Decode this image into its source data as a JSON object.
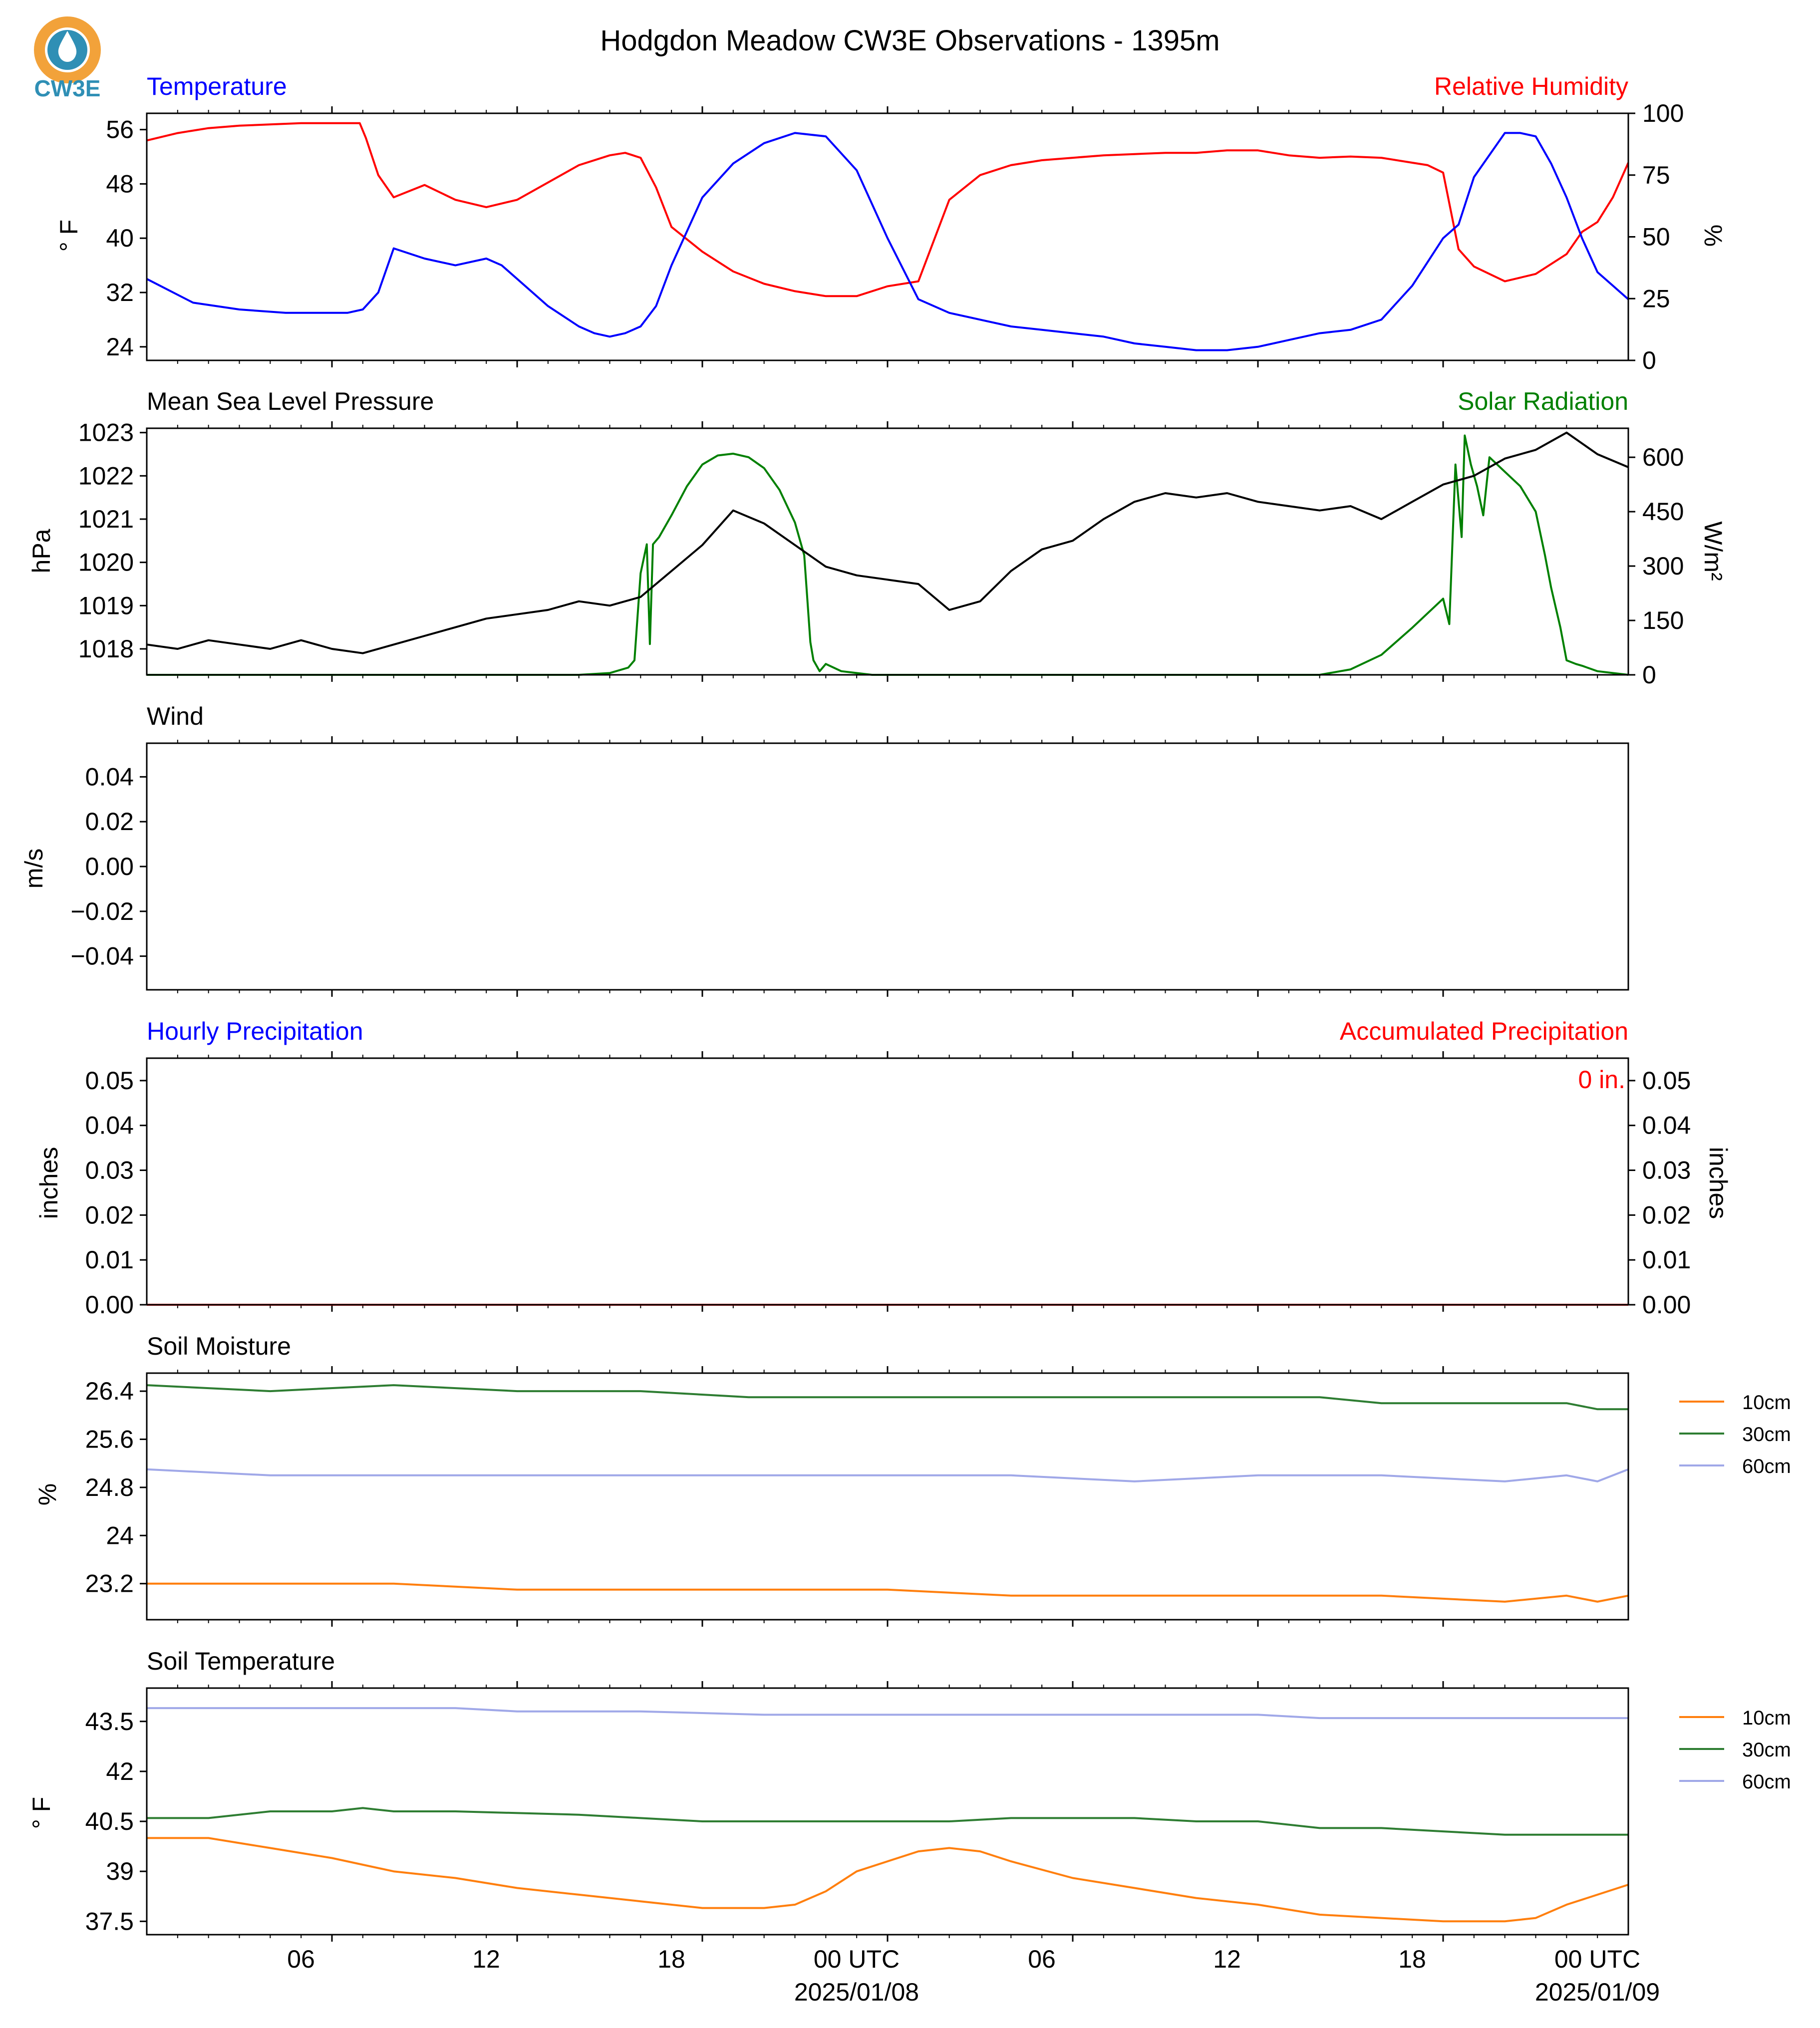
{
  "title": "Hodgdon Meadow CW3E Observations - 1395m",
  "logo": {
    "text": "CW3E",
    "ring_color": "#f2a23a",
    "drop_color": "#2f8fb5",
    "text_color": "#2f8fb5"
  },
  "colors": {
    "temp": "#0000ff",
    "rh": "#ff0000",
    "pressure": "#000000",
    "solar": "#008000",
    "soil10": "#ff7f0e",
    "soil30": "#2e7d32",
    "soil60": "#a0a8e8"
  },
  "x_axis": {
    "tick_labels": [
      "06",
      "12",
      "18",
      "00 UTC",
      "06",
      "12",
      "18",
      "00 UTC"
    ],
    "date_labels": [
      "2025/01/08",
      "2025/01/09"
    ]
  },
  "panels": {
    "temp_rh": {
      "left_title": "Temperature",
      "right_title": "Relative Humidity",
      "left_unit": "° F",
      "right_unit": "%"
    },
    "pressure_solar": {
      "left_title": "Mean Sea Level Pressure",
      "right_title": "Solar Radiation",
      "left_unit": "hPa",
      "right_unit": "W/m²"
    },
    "wind": {
      "left_title": "Wind",
      "left_unit": "m/s"
    },
    "precip": {
      "left_title": "Hourly Precipitation",
      "right_title": "Accumulated Precipitation",
      "left_unit": "inches",
      "right_unit": "inches",
      "annotation": "0 in."
    },
    "soil_moisture": {
      "left_title": "Soil Moisture",
      "left_unit": "%",
      "legend": [
        "10cm",
        "30cm",
        "60cm"
      ]
    },
    "soil_temp": {
      "left_title": "Soil Temperature",
      "left_unit": "° F",
      "legend": [
        "10cm",
        "30cm",
        "60cm"
      ]
    }
  },
  "chart_data": [
    {
      "type": "line",
      "title": "Temperature",
      "x_unit": "hours since 2025/01/07 00 UTC",
      "xlim": [
        0,
        48
      ],
      "ylabel": "° F",
      "ylim": [
        22,
        58.4
      ],
      "yticks": [
        24,
        32,
        40,
        48,
        56
      ],
      "series": [
        {
          "name": "Temperature",
          "x": [
            0,
            1.5,
            3,
            4.5,
            5.5,
            6.5,
            7,
            7.5,
            8,
            9,
            10,
            11,
            11.5,
            12,
            13,
            14,
            14.5,
            15,
            15.5,
            16,
            16.5,
            17,
            18,
            19,
            20,
            21,
            22,
            23,
            24,
            25,
            26,
            27,
            28,
            29,
            30,
            31,
            32,
            33,
            34,
            35,
            36,
            37,
            38,
            39,
            40,
            41,
            42,
            42.5,
            43,
            44,
            44.5,
            45,
            45.5,
            46,
            46.5,
            46.8,
            47,
            47.5,
            48
          ],
          "y": [
            34,
            30.5,
            29.5,
            29,
            29,
            29,
            29.5,
            32,
            38.5,
            37,
            36,
            37,
            36,
            34,
            30,
            27,
            26,
            25.5,
            26,
            27,
            30,
            36,
            46,
            51,
            54,
            55.5,
            55,
            50,
            40,
            31,
            29,
            28,
            27,
            26.5,
            26,
            25.5,
            24.5,
            24,
            23.5,
            23.5,
            24,
            25,
            26,
            26.5,
            28,
            33,
            40,
            42,
            49,
            55.5,
            55.5,
            55,
            51,
            46,
            40,
            37,
            35,
            33,
            31
          ]
        }
      ]
    },
    {
      "type": "line",
      "title": "Relative Humidity",
      "x_unit": "hours since 2025/01/07 00 UTC",
      "xlim": [
        0,
        48
      ],
      "ylabel": "%",
      "ylim": [
        0,
        100
      ],
      "yticks": [
        0,
        25,
        50,
        75,
        100
      ],
      "series": [
        {
          "name": "Relative Humidity",
          "x": [
            0,
            1,
            2,
            3,
            4,
            5,
            6,
            6.9,
            7.1,
            7.5,
            8,
            9,
            10,
            11,
            12,
            13,
            14,
            15,
            15.5,
            16,
            16.5,
            17,
            18,
            19,
            20,
            21,
            22,
            23,
            24,
            25,
            26,
            27,
            28,
            29,
            30,
            31,
            32,
            33,
            34,
            35,
            36,
            37,
            38,
            39,
            40,
            41,
            41.5,
            42,
            42.5,
            43,
            43.5,
            44,
            45,
            46,
            46.5,
            47,
            47.5,
            48
          ],
          "y": [
            89,
            92,
            94,
            95,
            95.5,
            96,
            96,
            96,
            90,
            75,
            66,
            71,
            65,
            62,
            65,
            72,
            79,
            83,
            84,
            82,
            70,
            54,
            44,
            36,
            31,
            28,
            26,
            26,
            30,
            32,
            65,
            75,
            79,
            81,
            82,
            83,
            83.5,
            84,
            84,
            85,
            85,
            83,
            82,
            82.5,
            82,
            80,
            79,
            76,
            45,
            38,
            35,
            32,
            35,
            43,
            52,
            56,
            66,
            80
          ]
        }
      ]
    },
    {
      "type": "line",
      "title": "Mean Sea Level Pressure",
      "x_unit": "hours since 2025/01/07 00 UTC",
      "xlim": [
        0,
        48
      ],
      "ylabel": "hPa",
      "ylim": [
        1017.4,
        1023.1
      ],
      "yticks": [
        1018,
        1019,
        1020,
        1021,
        1022,
        1023
      ],
      "series": [
        {
          "name": "Mean Sea Level Pressure",
          "x": [
            0,
            1,
            2,
            3,
            4,
            5,
            6,
            7,
            8,
            9,
            10,
            11,
            12,
            13,
            14,
            15,
            16,
            17,
            18,
            19,
            20,
            21,
            22,
            23,
            24,
            25,
            26,
            27,
            28,
            29,
            30,
            31,
            32,
            33,
            34,
            35,
            36,
            37,
            38,
            39,
            40,
            41,
            42,
            43,
            44,
            45,
            46,
            47,
            48
          ],
          "y": [
            1018.1,
            1018.0,
            1018.2,
            1018.1,
            1018.0,
            1018.2,
            1018.0,
            1017.9,
            1018.1,
            1018.3,
            1018.5,
            1018.7,
            1018.8,
            1018.9,
            1019.1,
            1019.0,
            1019.2,
            1019.8,
            1020.4,
            1021.2,
            1020.9,
            1020.4,
            1019.9,
            1019.7,
            1019.6,
            1019.5,
            1018.9,
            1019.1,
            1019.8,
            1020.3,
            1020.5,
            1021.0,
            1021.4,
            1021.6,
            1021.5,
            1021.6,
            1021.4,
            1021.3,
            1021.2,
            1021.3,
            1021.0,
            1021.4,
            1021.8,
            1022.0,
            1022.4,
            1022.6,
            1023.0,
            1022.5,
            1022.2
          ]
        }
      ]
    },
    {
      "type": "line",
      "title": "Solar Radiation",
      "x_unit": "hours since 2025/01/07 00 UTC",
      "xlim": [
        0,
        48
      ],
      "ylabel": "W/m²",
      "ylim": [
        0,
        680
      ],
      "yticks": [
        0,
        150,
        300,
        450,
        600
      ],
      "series": [
        {
          "name": "Solar Radiation",
          "x": [
            0,
            14,
            15,
            15.6,
            15.8,
            16.0,
            16.1,
            16.2,
            16.3,
            16.4,
            16.6,
            17,
            17.5,
            18,
            18.5,
            19,
            19.5,
            20,
            20.5,
            21,
            21.3,
            21.5,
            21.6,
            21.8,
            22,
            22.5,
            23,
            23.5,
            24,
            25,
            30,
            35,
            38,
            39,
            40,
            41,
            42,
            42.2,
            42.4,
            42.6,
            42.7,
            42.9,
            43.1,
            43.3,
            43.5,
            44,
            44.5,
            45,
            45.3,
            45.5,
            45.8,
            46,
            46.3,
            46.5,
            47,
            48
          ],
          "y": [
            0,
            0,
            5,
            20,
            40,
            280,
            320,
            360,
            85,
            360,
            380,
            440,
            520,
            580,
            605,
            610,
            600,
            570,
            510,
            420,
            330,
            90,
            40,
            10,
            30,
            10,
            5,
            0,
            0,
            0,
            0,
            0,
            0,
            15,
            55,
            130,
            210,
            140,
            580,
            380,
            660,
            580,
            520,
            440,
            600,
            560,
            520,
            450,
            330,
            240,
            130,
            40,
            30,
            25,
            10,
            0
          ]
        }
      ]
    },
    {
      "type": "line",
      "title": "Wind",
      "x_unit": "hours since 2025/01/07 00 UTC",
      "xlim": [
        0,
        48
      ],
      "ylabel": "m/s",
      "ylim": [
        -0.055,
        0.055
      ],
      "yticks": [
        -0.04,
        -0.02,
        0.0,
        0.02,
        0.04
      ],
      "ytick_labels": [
        "−0.04",
        "−0.02",
        "0.00",
        "0.02",
        "0.04"
      ],
      "series": []
    },
    {
      "type": "line",
      "title": "Hourly Precipitation",
      "x_unit": "hours since 2025/01/07 00 UTC",
      "xlim": [
        0,
        48
      ],
      "ylabel": "inches",
      "ylim": [
        0,
        0.055
      ],
      "yticks": [
        0.0,
        0.01,
        0.02,
        0.03,
        0.04,
        0.05
      ],
      "ytick_labels": [
        "0.00",
        "0.01",
        "0.02",
        "0.03",
        "0.04",
        "0.05"
      ],
      "series": [
        {
          "name": "Accumulated Precipitation",
          "x": [
            0,
            48
          ],
          "y": [
            0,
            0
          ]
        }
      ]
    },
    {
      "type": "line",
      "title": "Soil Moisture",
      "x_unit": "hours since 2025/01/07 00 UTC",
      "xlim": [
        0,
        48
      ],
      "ylabel": "%",
      "ylim": [
        22.6,
        26.7
      ],
      "yticks": [
        23.2,
        24.0,
        24.8,
        25.6,
        26.4
      ],
      "series": [
        {
          "name": "10cm",
          "x": [
            0,
            4,
            8,
            12,
            16,
            20,
            24,
            28,
            32,
            36,
            40,
            44,
            46,
            47,
            48
          ],
          "y": [
            23.2,
            23.2,
            23.2,
            23.1,
            23.1,
            23.1,
            23.1,
            23.0,
            23.0,
            23.0,
            23.0,
            22.9,
            23.0,
            22.9,
            23.0
          ]
        },
        {
          "name": "30cm",
          "x": [
            0,
            4,
            8,
            12,
            16,
            19.5,
            24,
            28,
            32,
            36,
            38,
            40,
            44,
            46,
            47,
            48
          ],
          "y": [
            26.5,
            26.4,
            26.5,
            26.4,
            26.4,
            26.3,
            26.3,
            26.3,
            26.3,
            26.3,
            26.3,
            26.2,
            26.2,
            26.2,
            26.1,
            26.1
          ]
        },
        {
          "name": "60cm",
          "x": [
            0,
            4,
            8,
            12,
            16,
            20,
            24,
            28,
            32,
            36,
            40,
            44,
            46,
            47,
            48
          ],
          "y": [
            25.1,
            25.0,
            25.0,
            25.0,
            25.0,
            25.0,
            25.0,
            25.0,
            24.9,
            25.0,
            25.0,
            24.9,
            25.0,
            24.9,
            25.1
          ]
        }
      ]
    },
    {
      "type": "line",
      "title": "Soil Temperature",
      "x_unit": "hours since 2025/01/07 00 UTC",
      "xlim": [
        0,
        48
      ],
      "ylabel": "° F",
      "ylim": [
        37.1,
        44.5
      ],
      "yticks": [
        37.5,
        39.0,
        40.5,
        42.0,
        43.5
      ],
      "series": [
        {
          "name": "10cm",
          "x": [
            0,
            2,
            4,
            6,
            8,
            10,
            12,
            14,
            16,
            18,
            20,
            21,
            22,
            23,
            24,
            25,
            26,
            27,
            28,
            30,
            32,
            34,
            36,
            38,
            40,
            42,
            43,
            44,
            45,
            46,
            47,
            48
          ],
          "y": [
            40.0,
            40.0,
            39.7,
            39.4,
            39.0,
            38.8,
            38.5,
            38.3,
            38.1,
            37.9,
            37.9,
            38.0,
            38.4,
            39.0,
            39.3,
            39.6,
            39.7,
            39.6,
            39.3,
            38.8,
            38.5,
            38.2,
            38.0,
            37.7,
            37.6,
            37.5,
            37.5,
            37.5,
            37.6,
            38.0,
            38.3,
            38.6
          ]
        },
        {
          "name": "30cm",
          "x": [
            0,
            2,
            4,
            6,
            7,
            8,
            10,
            14,
            16,
            18,
            20,
            22,
            24,
            26,
            28,
            30,
            32,
            34,
            36,
            38,
            40,
            42,
            44,
            46,
            48
          ],
          "y": [
            40.6,
            40.6,
            40.8,
            40.8,
            40.9,
            40.8,
            40.8,
            40.7,
            40.6,
            40.5,
            40.5,
            40.5,
            40.5,
            40.5,
            40.6,
            40.6,
            40.6,
            40.5,
            40.5,
            40.3,
            40.3,
            40.2,
            40.1,
            40.1,
            40.1
          ]
        },
        {
          "name": "60cm",
          "x": [
            0,
            4,
            8,
            10,
            12,
            14,
            16,
            20,
            24,
            28,
            32,
            36,
            38,
            40,
            44,
            48
          ],
          "y": [
            43.9,
            43.9,
            43.9,
            43.9,
            43.8,
            43.8,
            43.8,
            43.7,
            43.7,
            43.7,
            43.7,
            43.7,
            43.6,
            43.6,
            43.6,
            43.6
          ]
        }
      ]
    }
  ]
}
